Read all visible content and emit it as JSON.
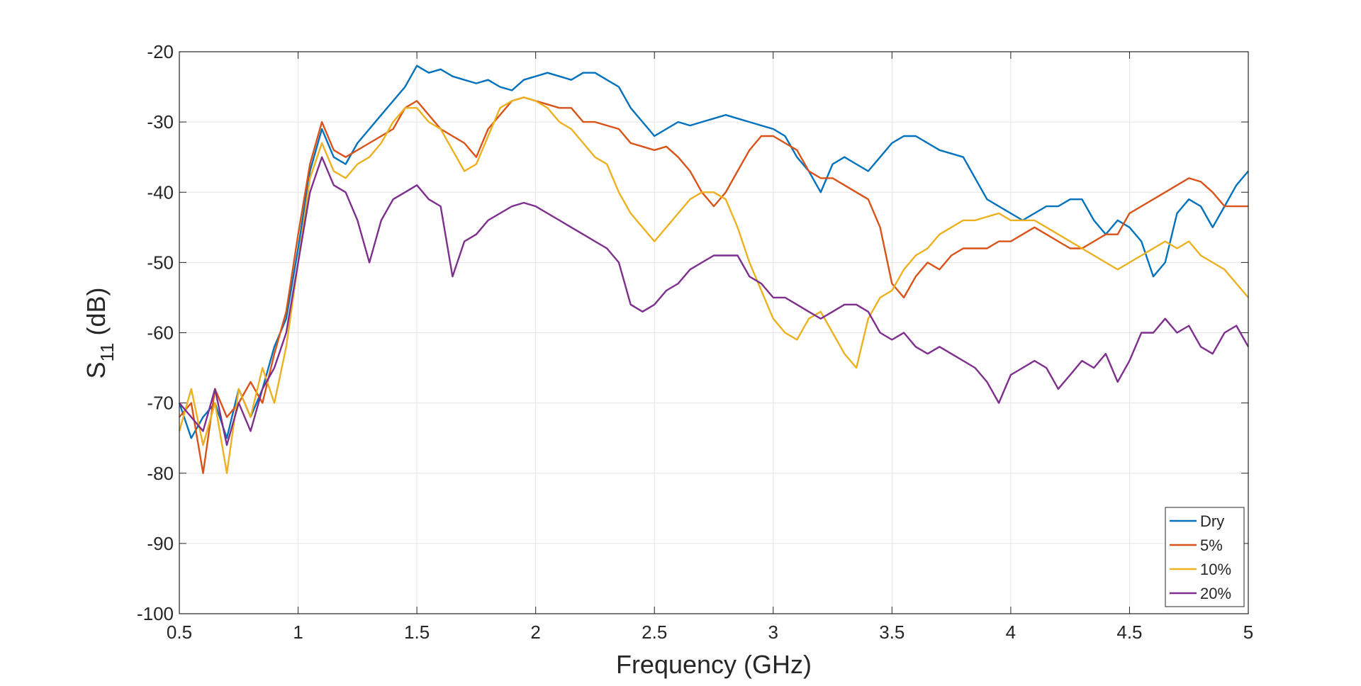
{
  "chart_data": {
    "type": "line",
    "xlabel": "Frequency (GHz)",
    "ylabel": "S",
    "ylabel_sub": "11",
    "ylabel_unit": "(dB)",
    "xlim": [
      0.5,
      5
    ],
    "ylim": [
      -100,
      -20
    ],
    "xticks": [
      0.5,
      1,
      1.5,
      2,
      2.5,
      3,
      3.5,
      4,
      4.5,
      5
    ],
    "yticks": [
      -100,
      -90,
      -80,
      -70,
      -60,
      -50,
      -40,
      -30,
      -20
    ],
    "grid": true,
    "legend": "lower right",
    "x": [
      0.5,
      0.55,
      0.6,
      0.65,
      0.7,
      0.75,
      0.8,
      0.85,
      0.9,
      0.95,
      1.0,
      1.05,
      1.1,
      1.15,
      1.2,
      1.25,
      1.3,
      1.35,
      1.4,
      1.45,
      1.5,
      1.55,
      1.6,
      1.65,
      1.7,
      1.75,
      1.8,
      1.85,
      1.9,
      1.95,
      2.0,
      2.05,
      2.1,
      2.15,
      2.2,
      2.25,
      2.3,
      2.35,
      2.4,
      2.45,
      2.5,
      2.55,
      2.6,
      2.65,
      2.7,
      2.75,
      2.8,
      2.85,
      2.9,
      2.95,
      3.0,
      3.05,
      3.1,
      3.15,
      3.2,
      3.25,
      3.3,
      3.35,
      3.4,
      3.45,
      3.5,
      3.55,
      3.6,
      3.65,
      3.7,
      3.75,
      3.8,
      3.85,
      3.9,
      3.95,
      4.0,
      4.05,
      4.1,
      4.15,
      4.2,
      4.25,
      4.3,
      4.35,
      4.4,
      4.45,
      4.5,
      4.55,
      4.6,
      4.65,
      4.7,
      4.75,
      4.8,
      4.85,
      4.9,
      4.95,
      5.0
    ],
    "series": [
      {
        "name": "Dry",
        "color": "#0072bd",
        "values": [
          -70,
          -75,
          -72,
          -70,
          -75,
          -68,
          -72,
          -68,
          -62,
          -58,
          -48,
          -37,
          -31,
          -35,
          -36,
          -33,
          -31,
          -29,
          -27,
          -25,
          -22,
          -23,
          -22.5,
          -23.5,
          -24,
          -24.5,
          -24,
          -25,
          -25.5,
          -24,
          -23.5,
          -23,
          -23.5,
          -24,
          -23,
          -23,
          -24,
          -25,
          -28,
          -30,
          -32,
          -31,
          -30,
          -30.5,
          -30,
          -29.5,
          -29,
          -29.5,
          -30,
          -30.5,
          -31,
          -32,
          -35,
          -37,
          -40,
          -36,
          -35,
          -36,
          -37,
          -35,
          -33,
          -32,
          -32,
          -33,
          -34,
          -34.5,
          -35,
          -38,
          -41,
          -42,
          -43,
          -44,
          -43,
          -42,
          -42,
          -41,
          -41,
          -44,
          -46,
          -44,
          -45,
          -47,
          -52,
          -50,
          -43,
          -41,
          -42,
          -45,
          -42,
          -39,
          -37
        ]
      },
      {
        "name": "5%",
        "color": "#d95319",
        "values": [
          -72,
          -70,
          -80,
          -68,
          -72,
          -70,
          -67,
          -70,
          -63,
          -57,
          -46,
          -36,
          -30,
          -34,
          -35,
          -34,
          -33,
          -32,
          -31,
          -28,
          -27,
          -29,
          -31,
          -32,
          -33,
          -35,
          -31,
          -29,
          -27,
          -26.5,
          -27,
          -27.5,
          -28,
          -28,
          -30,
          -30,
          -30.5,
          -31,
          -33,
          -33.5,
          -34,
          -33.5,
          -35,
          -37,
          -40,
          -42,
          -40,
          -37,
          -34,
          -32,
          -32,
          -33,
          -34,
          -37,
          -38,
          -38,
          -39,
          -40,
          -41,
          -45,
          -53,
          -55,
          -52,
          -50,
          -51,
          -49,
          -48,
          -48,
          -48,
          -47,
          -47,
          -46,
          -45,
          -46,
          -47,
          -48,
          -48,
          -47,
          -46,
          -46,
          -43,
          -42,
          -41,
          -40,
          -39,
          -38,
          -38.5,
          -40,
          -42,
          -42,
          -42
        ]
      },
      {
        "name": "10%",
        "color": "#edb120",
        "values": [
          -74,
          -68,
          -76,
          -70,
          -80,
          -68,
          -72,
          -65,
          -70,
          -62,
          -50,
          -38,
          -33,
          -37,
          -38,
          -36,
          -35,
          -33,
          -30,
          -28,
          -28,
          -30,
          -31,
          -34,
          -37,
          -36,
          -32,
          -28,
          -27,
          -26.5,
          -27,
          -28,
          -30,
          -31,
          -33,
          -35,
          -36,
          -40,
          -43,
          -45,
          -47,
          -45,
          -43,
          -41,
          -40,
          -40,
          -41,
          -45,
          -50,
          -54,
          -58,
          -60,
          -61,
          -58,
          -57,
          -60,
          -63,
          -65,
          -58,
          -55,
          -54,
          -51,
          -49,
          -48,
          -46,
          -45,
          -44,
          -44,
          -43.5,
          -43,
          -44,
          -44,
          -44,
          -45,
          -46,
          -47,
          -48,
          -49,
          -50,
          -51,
          -50,
          -49,
          -48,
          -47,
          -48,
          -47,
          -49,
          -50,
          -51,
          -53,
          -55
        ]
      },
      {
        "name": "20%",
        "color": "#7e2f8e",
        "values": [
          -70,
          -72,
          -74,
          -68,
          -76,
          -70,
          -74,
          -68,
          -65,
          -60,
          -50,
          -40,
          -35,
          -39,
          -40,
          -44,
          -50,
          -44,
          -41,
          -40,
          -39,
          -41,
          -42,
          -52,
          -47,
          -46,
          -44,
          -43,
          -42,
          -41.5,
          -42,
          -43,
          -44,
          -45,
          -46,
          -47,
          -48,
          -50,
          -56,
          -57,
          -56,
          -54,
          -53,
          -51,
          -50,
          -49,
          -49,
          -49,
          -52,
          -53,
          -55,
          -55,
          -56,
          -57,
          -58,
          -57,
          -56,
          -56,
          -57,
          -60,
          -61,
          -60,
          -62,
          -63,
          -62,
          -63,
          -64,
          -65,
          -67,
          -70,
          -66,
          -65,
          -64,
          -65,
          -68,
          -66,
          -64,
          -65,
          -63,
          -67,
          -64,
          -60,
          -60,
          -58,
          -60,
          -59,
          -62,
          -63,
          -60,
          -59,
          -62
        ]
      }
    ]
  }
}
